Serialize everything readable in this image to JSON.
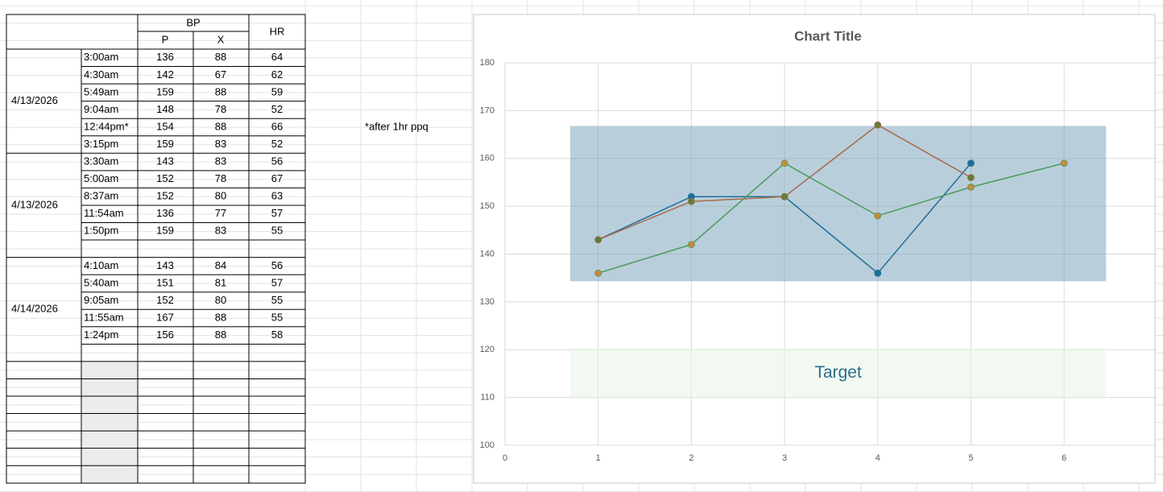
{
  "sheet": {
    "header": {
      "bp": "BP",
      "p": "P",
      "x": "X",
      "hr": "HR"
    },
    "groups": [
      {
        "date": "4/13/2026",
        "rows": [
          [
            "3:00am",
            136,
            88,
            64
          ],
          [
            "4:30am",
            142,
            67,
            62
          ],
          [
            "5:49am",
            159,
            88,
            59
          ],
          [
            "9:04am",
            148,
            78,
            52
          ],
          [
            "12:44pm*",
            154,
            88,
            66
          ],
          [
            "3:15pm",
            159,
            83,
            52
          ]
        ]
      },
      {
        "date": "4/13/2026",
        "rows": [
          [
            "3:30am",
            143,
            83,
            56
          ],
          [
            "5:00am",
            152,
            78,
            67
          ],
          [
            "8:37am",
            152,
            80,
            63
          ],
          [
            "11:54am",
            136,
            77,
            57
          ],
          [
            "1:50pm",
            159,
            83,
            55
          ]
        ]
      },
      {
        "date": "4/14/2026",
        "rows": [
          [
            "4:10am",
            143,
            84,
            56
          ],
          [
            "5:40am",
            151,
            81,
            57
          ],
          [
            "9:05am",
            152,
            80,
            55
          ],
          [
            "11:55am",
            167,
            88,
            55
          ],
          [
            "1:24pm",
            156,
            88,
            58
          ]
        ]
      }
    ],
    "note": "*after 1hr ppq"
  },
  "chart_data": {
    "type": "scatter",
    "title": "Chart Title",
    "xlim": [
      0,
      7
    ],
    "xticks": [
      0,
      1,
      2,
      3,
      4,
      5,
      6
    ],
    "ylim": [
      100,
      180
    ],
    "yticks": [
      100,
      110,
      120,
      130,
      140,
      150,
      160,
      170,
      180
    ],
    "grid": true,
    "bands": [
      {
        "x": [
          0.7,
          6.45
        ],
        "y": [
          134.3,
          166.8
        ],
        "color": "#7fa6bd"
      },
      {
        "x": [
          0.7,
          6.45
        ],
        "y": [
          110,
          120.2
        ],
        "color": "#e6f4e6",
        "label": "Target",
        "label_color": "#2f6d8c"
      }
    ],
    "series": [
      {
        "color": "#1f6f98",
        "marker_color": "#1f6f98",
        "x": [
          1,
          2,
          3,
          4,
          5
        ],
        "values": [
          143,
          152,
          152,
          136,
          159
        ]
      },
      {
        "color": "#a8694c",
        "marker_color": "#5e7f35",
        "x": [
          1,
          2,
          3,
          4,
          5
        ],
        "values": [
          143,
          151,
          152,
          167,
          156
        ]
      },
      {
        "color": "#4c9a5e",
        "marker_color": "#c98a3c",
        "x": [
          1,
          2,
          3,
          4,
          5,
          6
        ],
        "values": [
          136,
          142,
          159,
          148,
          154,
          159
        ]
      }
    ]
  }
}
